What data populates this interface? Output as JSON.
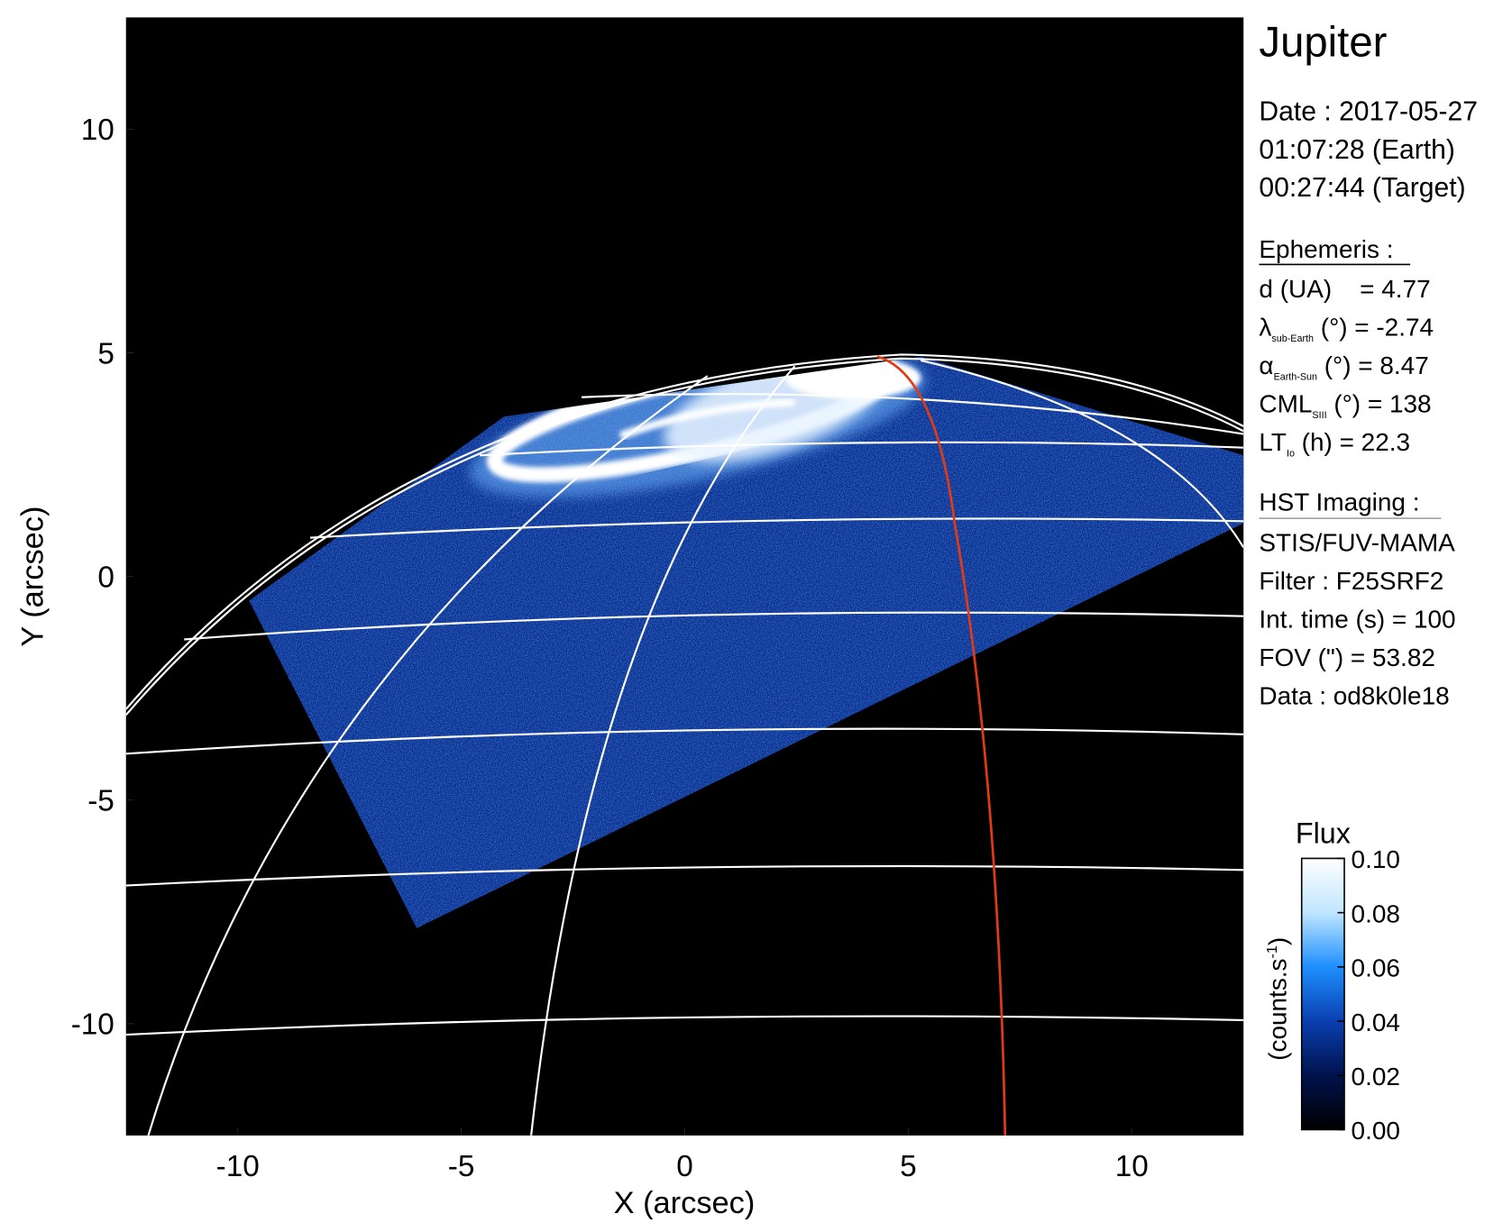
{
  "chart_data": {
    "type": "image",
    "xlabel": "X (arcsec)",
    "ylabel": "Y (arcsec)",
    "xlim": [
      -12.5,
      12.5
    ],
    "ylim": [
      -12.5,
      12.5
    ],
    "xticks": [
      -10,
      -5,
      0,
      5,
      10
    ],
    "yticks": [
      -10,
      -5,
      0,
      5,
      10
    ],
    "colorbar": {
      "title": "Flux",
      "unit": "(counts.s",
      "unit_sup": "-1",
      "unit_end": ")",
      "clim": [
        0,
        0.1
      ],
      "ticks": [
        {
          "value": 0,
          "label": "0.00"
        },
        0.02,
        0.04,
        0.06,
        0.08,
        {
          "value": 0.1,
          "label": "0.10"
        }
      ],
      "colormap": [
        "#000000",
        "#00124d",
        "#0a3fb0",
        "#1e8fff",
        "#bfe6ff",
        "#ffffff"
      ]
    },
    "info": {
      "title": "Jupiter",
      "date": [
        "Date : 2017-05-27",
        "01:07:28 (Earth)",
        "00:27:44 (Target)"
      ],
      "ephemeris_header": "Ephemeris :",
      "ephemeris": [
        {
          "text": "d (UA)    = 4.77"
        },
        {
          "symbol": "λ",
          "sub": "sub-Earth",
          "text": " (°) = -2.74"
        },
        {
          "symbol": "α",
          "sub": "Earth-Sun",
          "text": " (°) = 8.47"
        },
        {
          "symbol": "CML",
          "sub": "SIII",
          "text": " (°) = 138"
        },
        {
          "symbol": "LT",
          "sub": "Io",
          "text": " (h) = 22.3"
        }
      ],
      "imaging_header": "HST Imaging :",
      "imaging": [
        "STIS/FUV-MAMA",
        "Filter : F25SRF2",
        "Int. time (s) = 100",
        "FOV (\") = 53.82",
        "Data : od8k0le18"
      ]
    }
  }
}
